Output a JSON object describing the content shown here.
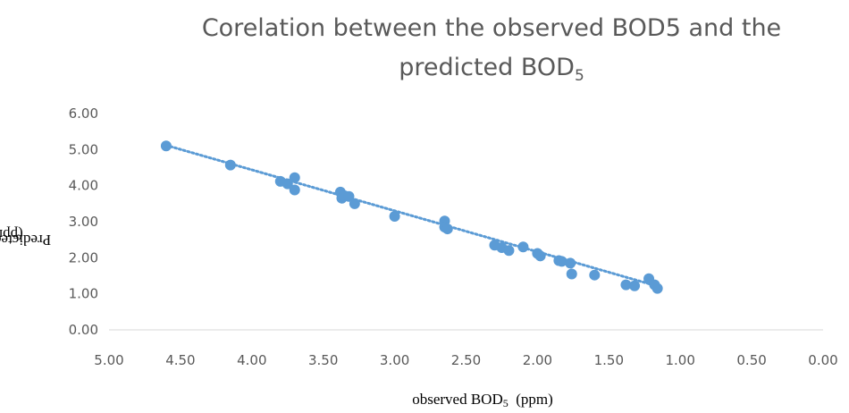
{
  "chart_data": {
    "type": "scatter",
    "title": "Corelation between the observed BOD5 and the predicted BOD",
    "title_line1": "Corelation between the observed BOD5 and the",
    "title_line2": "predicted BOD",
    "title_subscript": "5",
    "xlabel": "observed BOD",
    "xlabel_subscript": "5",
    "xlabel_unit": "(ppm)",
    "ylabel": "Predicted BOD",
    "ylabel_subscript": "5",
    "ylabel_unit": "(ppm)",
    "xlim": [
      5.0,
      0.0
    ],
    "ylim": [
      0.0,
      6.0
    ],
    "x_reversed": true,
    "x_ticks": [
      "5.00",
      "4.50",
      "4.00",
      "3.50",
      "3.00",
      "2.50",
      "2.00",
      "1.50",
      "1.00",
      "0.50",
      "0.00"
    ],
    "y_ticks": [
      "0.00",
      "1.00",
      "2.00",
      "3.00",
      "4.00",
      "5.00",
      "6.00"
    ],
    "grid": false,
    "legend": "none",
    "trendline": {
      "style": "dotted linear",
      "x": [
        4.6,
        1.15
      ],
      "y": [
        5.12,
        1.2
      ]
    },
    "series": [
      {
        "color": "#5b9bd5",
        "points": [
          {
            "x": 4.6,
            "y": 5.1
          },
          {
            "x": 4.15,
            "y": 4.57
          },
          {
            "x": 3.8,
            "y": 4.12
          },
          {
            "x": 3.75,
            "y": 4.05
          },
          {
            "x": 3.7,
            "y": 4.22
          },
          {
            "x": 3.7,
            "y": 3.88
          },
          {
            "x": 3.38,
            "y": 3.82
          },
          {
            "x": 3.37,
            "y": 3.65
          },
          {
            "x": 3.35,
            "y": 3.72
          },
          {
            "x": 3.32,
            "y": 3.7
          },
          {
            "x": 3.28,
            "y": 3.5
          },
          {
            "x": 3.0,
            "y": 3.15
          },
          {
            "x": 2.65,
            "y": 3.02
          },
          {
            "x": 2.65,
            "y": 2.85
          },
          {
            "x": 2.63,
            "y": 2.8
          },
          {
            "x": 2.3,
            "y": 2.35
          },
          {
            "x": 2.25,
            "y": 2.28
          },
          {
            "x": 2.2,
            "y": 2.2
          },
          {
            "x": 2.1,
            "y": 2.3
          },
          {
            "x": 2.0,
            "y": 2.12
          },
          {
            "x": 1.98,
            "y": 2.05
          },
          {
            "x": 1.85,
            "y": 1.92
          },
          {
            "x": 1.83,
            "y": 1.9
          },
          {
            "x": 1.77,
            "y": 1.85
          },
          {
            "x": 1.76,
            "y": 1.55
          },
          {
            "x": 1.6,
            "y": 1.52
          },
          {
            "x": 1.38,
            "y": 1.25
          },
          {
            "x": 1.32,
            "y": 1.22
          },
          {
            "x": 1.22,
            "y": 1.42
          },
          {
            "x": 1.18,
            "y": 1.25
          },
          {
            "x": 1.16,
            "y": 1.15
          }
        ]
      }
    ]
  }
}
